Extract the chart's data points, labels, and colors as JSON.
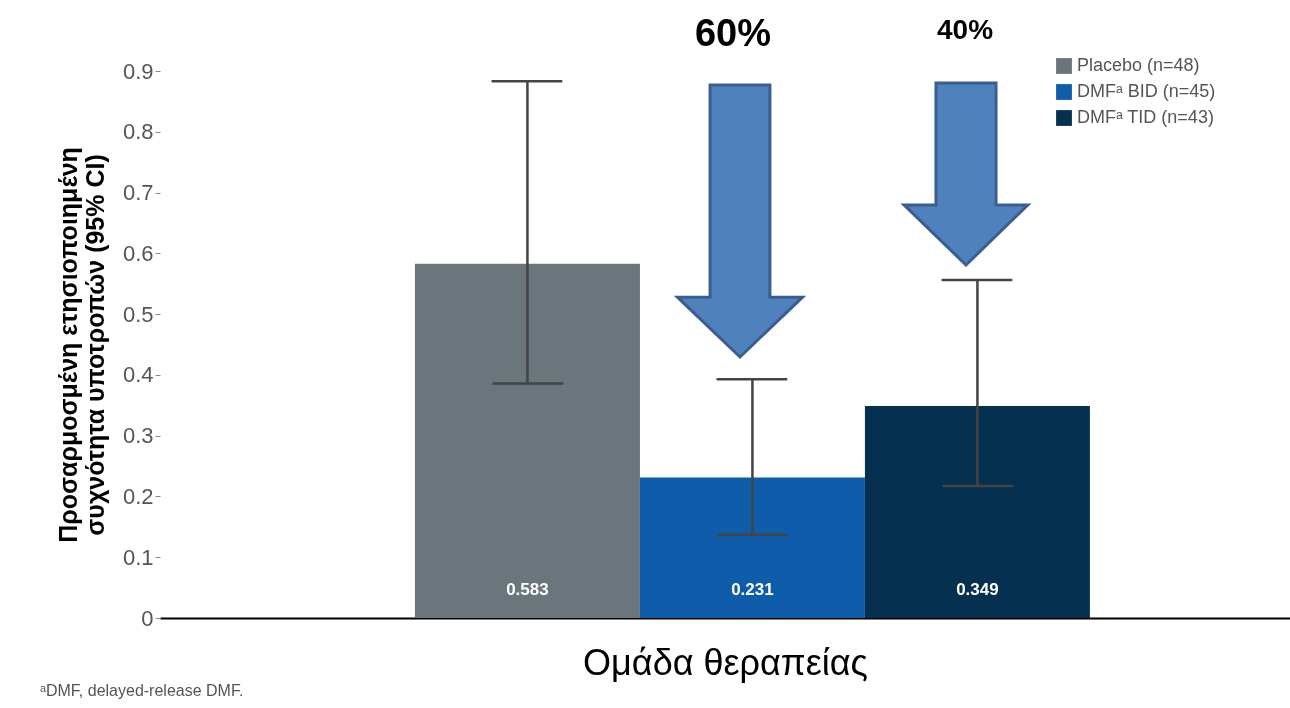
{
  "chart_data": {
    "type": "bar",
    "ylabel": "Προσαρμοσμένη ετησιοποιημένη\nσυχνότητα υποτροπών (95% CI)",
    "xlabel": "Ομάδα θεραπείας",
    "categories": [
      null
    ],
    "series": [
      {
        "name": "Placebo (n=48)",
        "color": "#6b757c",
        "values": [
          0.583
        ],
        "errors": [
          [
            0.386,
            0.883
          ]
        ]
      },
      {
        "name": "DMFᵃ BID (n=45)",
        "color": "#0f5cab",
        "values": [
          0.231
        ],
        "errors": [
          [
            0.137,
            0.393
          ]
        ]
      },
      {
        "name": "DMFᵃ TID (n=43)",
        "color": "#06304f",
        "values": [
          0.349
        ],
        "errors": [
          [
            0.217,
            0.556
          ]
        ]
      }
    ],
    "ylim": [
      0,
      0.9
    ],
    "yticks": [
      0,
      0.1,
      0.2,
      0.3,
      0.4,
      0.5,
      0.6,
      0.7,
      0.8,
      0.9
    ],
    "data_labels": true,
    "grid": false,
    "legend": "top right",
    "annotations": [
      "60%",
      "40%",
      "ᵃDMF, delayed-release DMF."
    ]
  }
}
